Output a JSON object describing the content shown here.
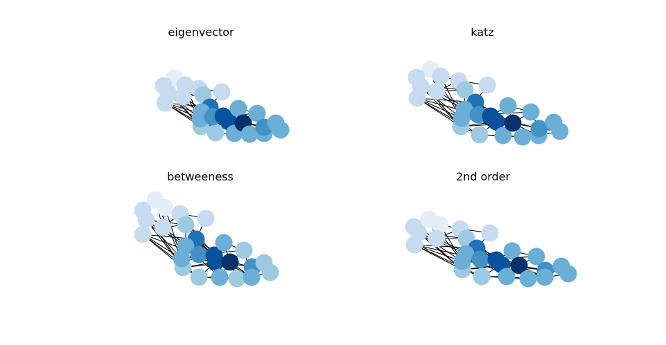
{
  "figure": {
    "edge_color": "#000000",
    "background": "#ffffff",
    "colormap": [
      "#e3eef9",
      "#c6dbef",
      "#9ecae1",
      "#6baed6",
      "#4292c6",
      "#2171b5",
      "#08519c",
      "#08306b"
    ],
    "panels": [
      {
        "id": "eigenvector",
        "title": "eigenvector"
      },
      {
        "id": "katz",
        "title": "katz"
      },
      {
        "id": "betweeness",
        "title": "betweeness"
      },
      {
        "id": "second-order",
        "title": "2nd order"
      }
    ]
  }
}
